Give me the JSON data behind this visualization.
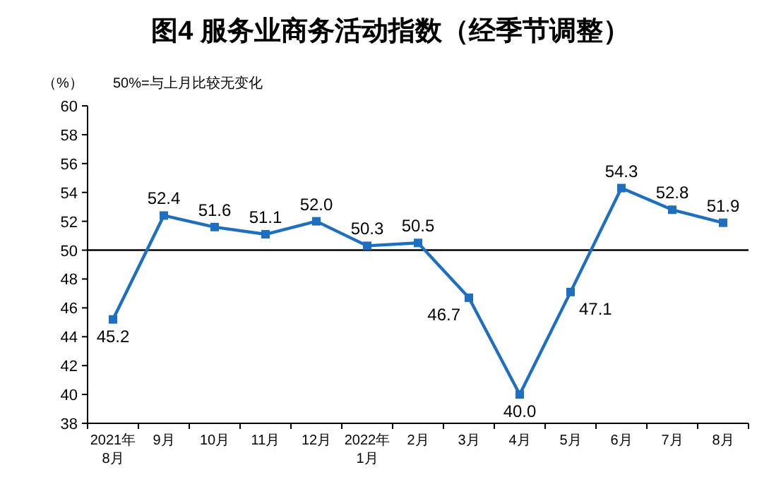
{
  "chart_data": {
    "type": "line",
    "title": "图4  服务业商务活动指数（经季节调整）",
    "ylabel": "（%）",
    "annotations": [
      "50%=与上月比较无变化"
    ],
    "categories": [
      "2021年\n8月",
      "9月",
      "10月",
      "11月",
      "12月",
      "2022年\n1月",
      "2月",
      "3月",
      "4月",
      "5月",
      "6月",
      "7月",
      "8月"
    ],
    "series": [
      {
        "color": "#1f6fc0",
        "values": [
          45.2,
          52.4,
          51.6,
          51.1,
          52.0,
          50.3,
          50.5,
          46.7,
          40.0,
          47.1,
          54.3,
          52.8,
          51.9
        ]
      }
    ],
    "ylim": [
      38,
      60
    ],
    "yticks": [
      38,
      40,
      42,
      44,
      46,
      48,
      50,
      52,
      54,
      56,
      58,
      60
    ],
    "ref_lines": [
      {
        "axis": "y",
        "value": 50,
        "color": "#000000"
      }
    ],
    "value_labels": [
      "45.2",
      "52.4",
      "51.6",
      "51.1",
      "52.0",
      "50.3",
      "50.5",
      "46.7",
      "40.0",
      "47.1",
      "54.3",
      "52.8",
      "51.9"
    ],
    "grid": false,
    "marker": "square",
    "line_style": "solid"
  }
}
